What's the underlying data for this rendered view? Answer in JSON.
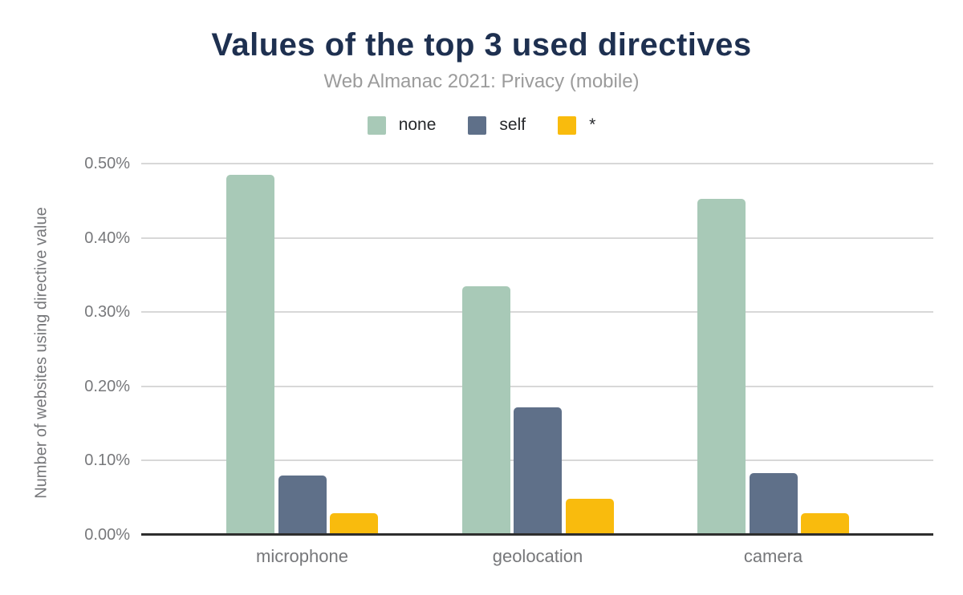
{
  "chart_data": {
    "type": "bar",
    "title": "Values of the top 3 used directives",
    "subtitle": "Web Almanac 2021: Privacy (mobile)",
    "ylabel": "Number of websites using directive value",
    "xlabel": "",
    "categories": [
      "microphone",
      "geolocation",
      "camera"
    ],
    "series": [
      {
        "name": "none",
        "color": "#a8c9b7",
        "values": [
          0.485,
          0.335,
          0.452
        ]
      },
      {
        "name": "self",
        "color": "#5f7089",
        "values": [
          0.08,
          0.172,
          0.083
        ]
      },
      {
        "name": "*",
        "color": "#f9bb0d",
        "values": [
          0.029,
          0.049,
          0.029
        ]
      }
    ],
    "value_suffix": "%",
    "ylim": [
      0,
      0.5
    ],
    "yticks": [
      0.5,
      0.4,
      0.3,
      0.2,
      0.1,
      0.0
    ],
    "ytick_labels": [
      "0.50%",
      "0.40%",
      "0.30%",
      "0.20%",
      "0.10%",
      "0.00%"
    ],
    "grid": "horizontal",
    "legend_position": "top"
  },
  "colors": {
    "title": "#1e3050",
    "subtitle": "#9b9b9b",
    "axis_line": "#2e2e2e",
    "gridline": "#d8d8d8",
    "tick_text": "#77787b",
    "legend_text": "#27292c",
    "background": "#ffffff"
  }
}
